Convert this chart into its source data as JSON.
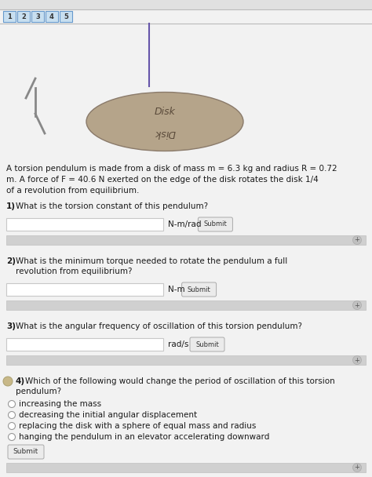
{
  "bg_color": "#f2f2f2",
  "top_tabs": [
    "1",
    "2",
    "3",
    "4",
    "5"
  ],
  "disk_color": "#b5a48a",
  "disk_label_top": "Disk",
  "disk_label_bottom": "Disk",
  "wire_color": "#6655aa",
  "description_line1": "A torsion pendulum is made from a disk of mass m = 6.3 kg and radius R = 0.72",
  "description_line2": "m. A force of F = 40.6 N exerted on the edge of the disk rotates the disk 1/4",
  "description_line3": "of a revolution from equilibrium.",
  "q1_sup": "1)",
  "q1_text": "What is the torsion constant of this pendulum?",
  "q1_unit": "N-m/rad",
  "q2_sup": "2)",
  "q2_text1": "What is the minimum torque needed to rotate the pendulum a full",
  "q2_text2": "revolution from equilibrium?",
  "q2_unit": "N-m",
  "q3_sup": "3)",
  "q3_text": "What is the angular frequency of oscillation of this torsion pendulum?",
  "q3_unit": "rad/s",
  "q4_sup": "4)",
  "q4_text1": "Which of the following would change the period of oscillation of this torsion",
  "q4_text2": "pendulum?",
  "q4_choices": [
    "increasing the mass",
    "decreasing the initial angular displacement",
    "replacing the disk with a sphere of equal mass and radius",
    "hanging the pendulum in an elevator accelerating downward"
  ],
  "submit_label": "Submit",
  "font_color": "#1a1a1a",
  "input_bg": "#ffffff",
  "input_border": "#c8c8c8",
  "feedback_bg": "#d0d0d0",
  "tab_bg": "#c8dff0",
  "tab_border": "#6699cc",
  "tab_text": "#333333"
}
